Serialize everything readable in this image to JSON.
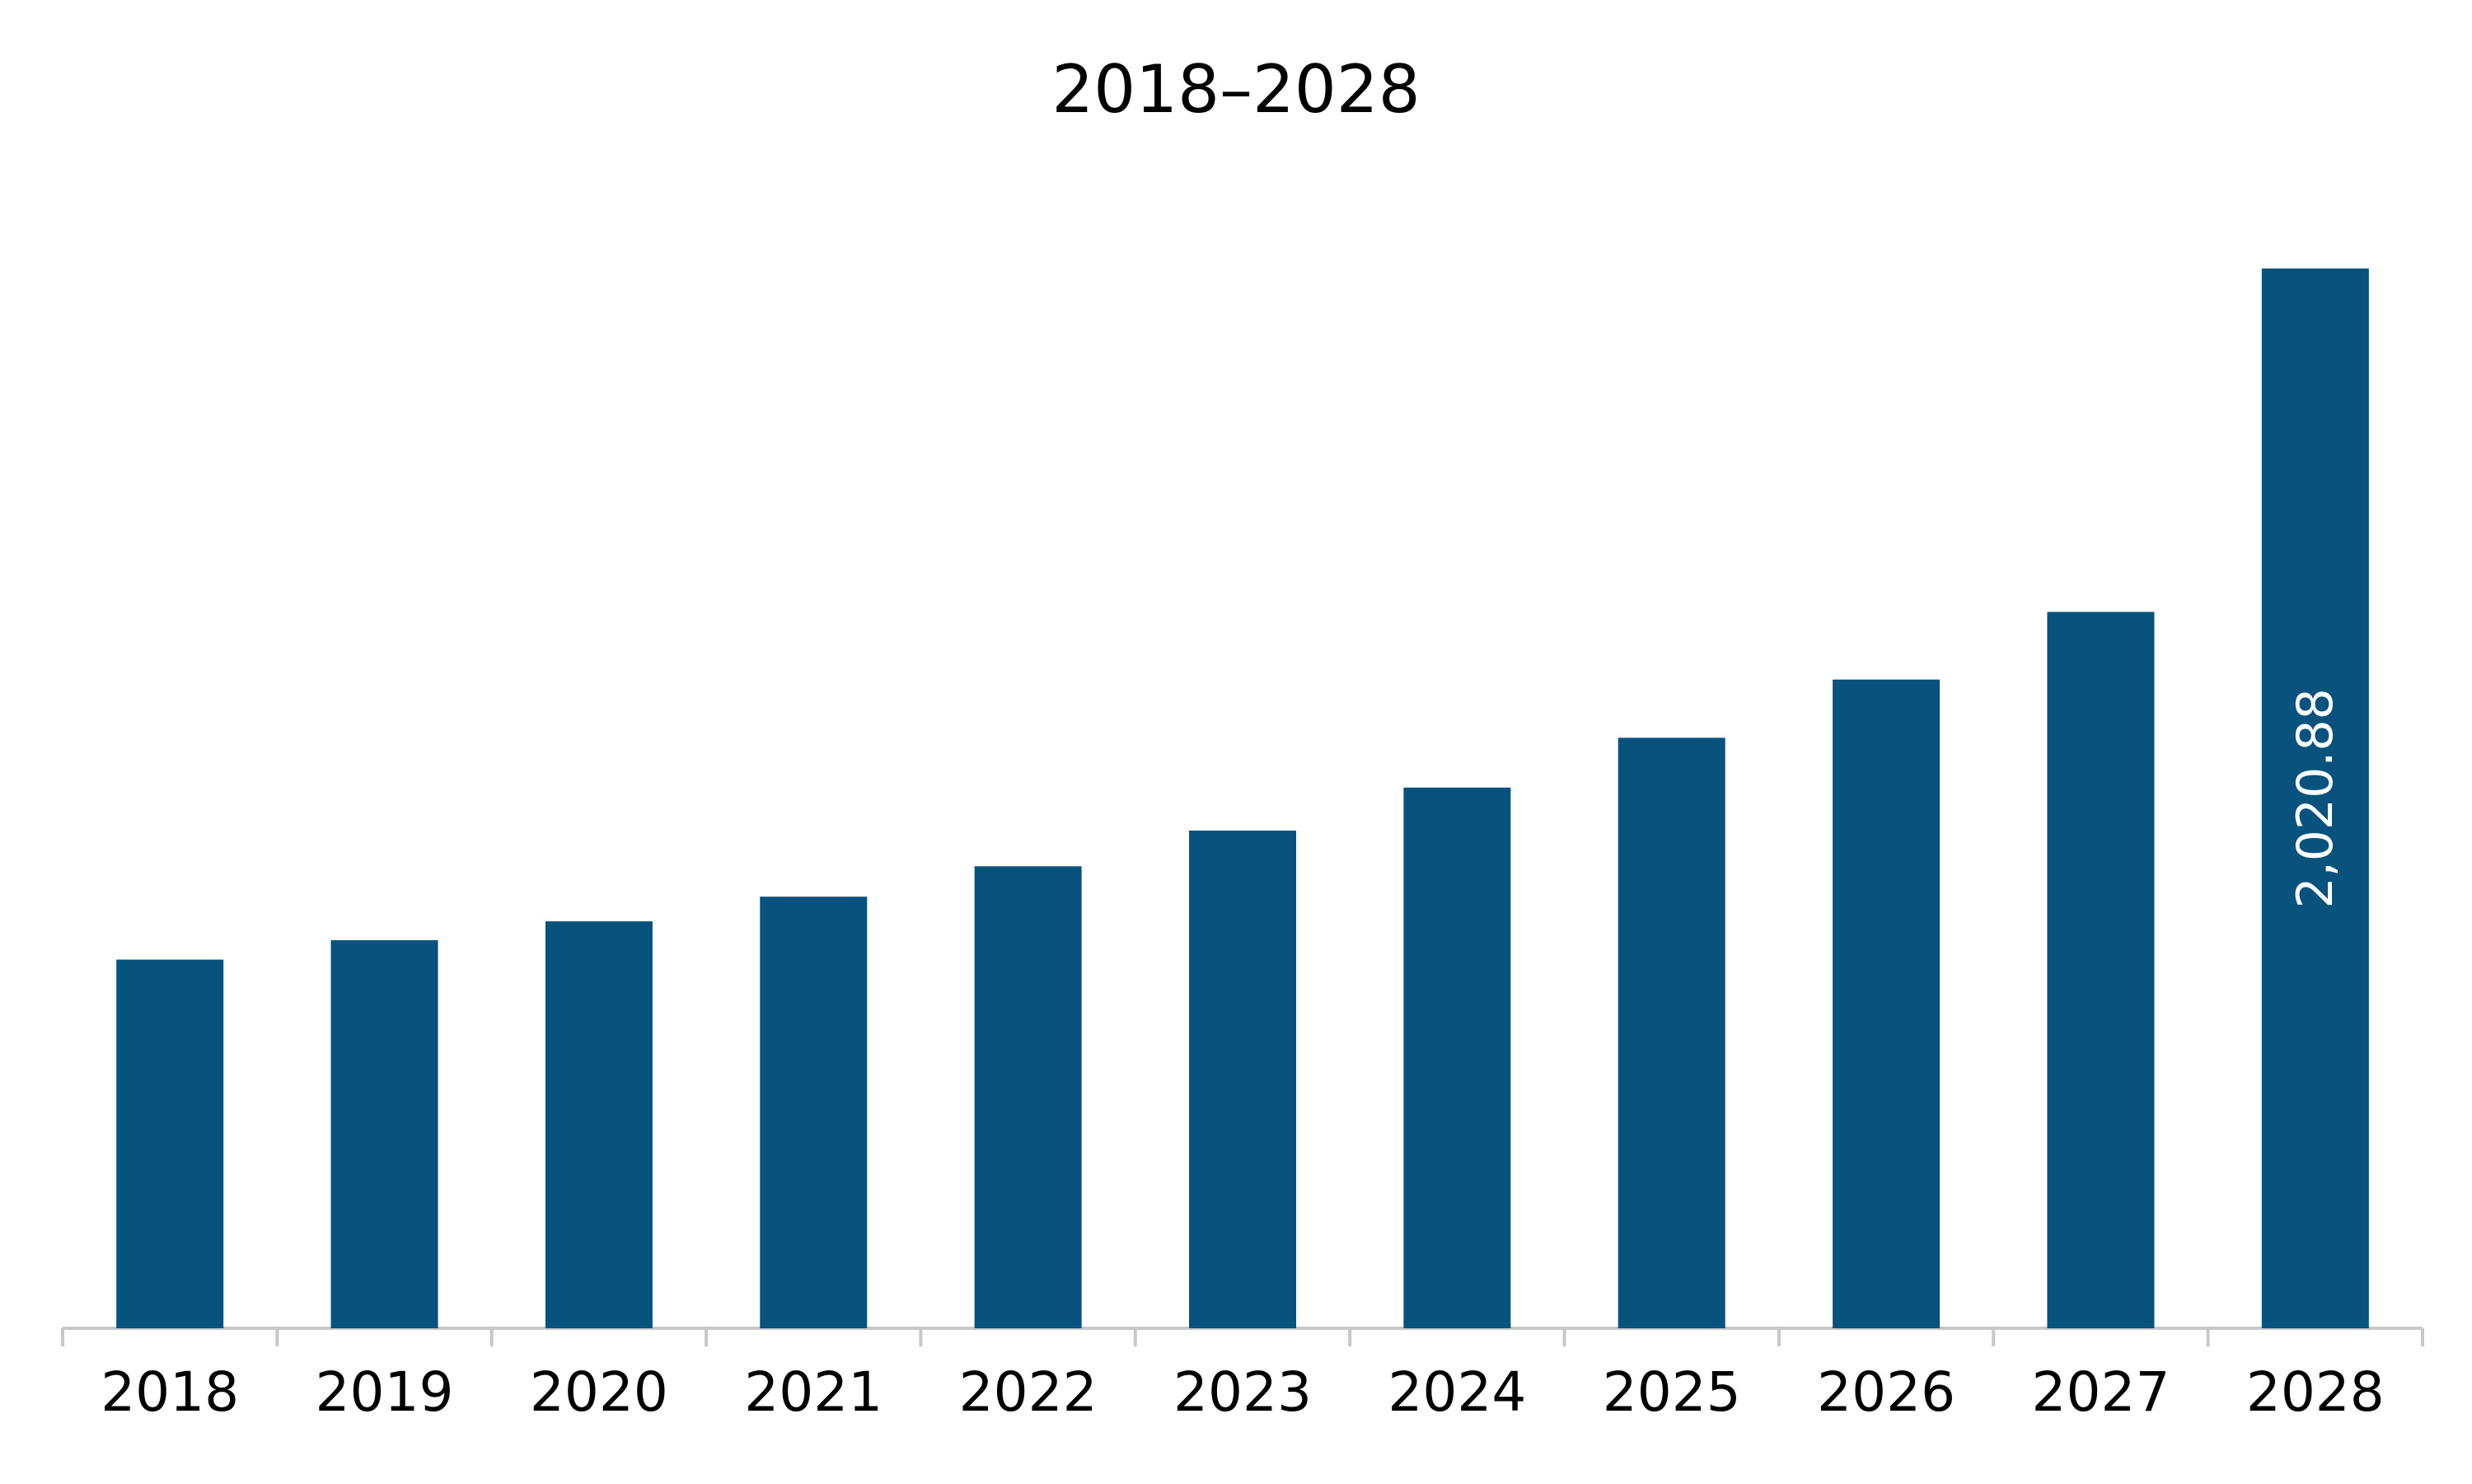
{
  "chart_data": {
    "type": "bar",
    "title": "2018–2028",
    "xlabel": "",
    "ylabel": "",
    "categories": [
      "2018",
      "2019",
      "2020",
      "2021",
      "2022",
      "2023",
      "2024",
      "2025",
      "2026",
      "2027",
      "2028"
    ],
    "values": [
      703,
      740,
      776,
      823,
      881,
      949,
      1031,
      1126,
      1237,
      1366,
      2020.88
    ],
    "data_labels": [
      {
        "category": "2028",
        "text": "2,020.88"
      }
    ],
    "ylim": [
      0,
      2250
    ],
    "grid": false,
    "legend": "none",
    "colors": {
      "bar": "#08537e",
      "axis": "#c8c8c8",
      "text": "#000000",
      "data_label": "#ffffff"
    }
  }
}
